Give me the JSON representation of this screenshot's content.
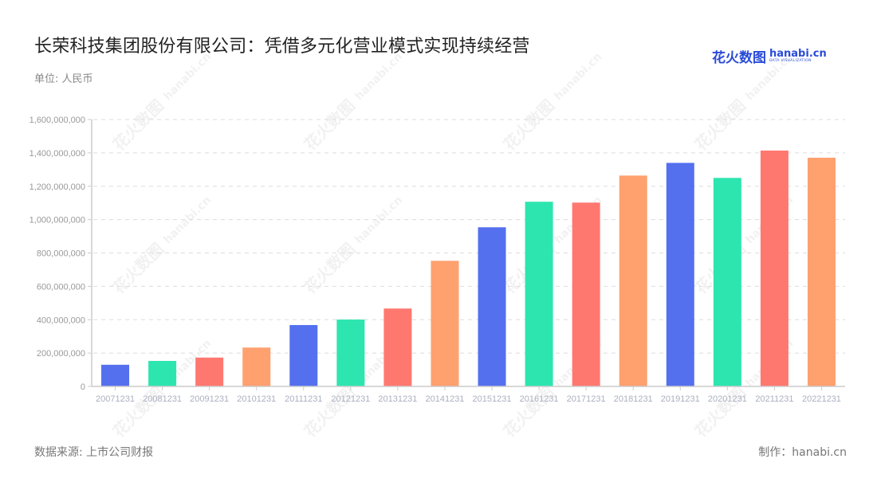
{
  "header": {
    "title": "长荣科技集团股份有限公司：凭借多元化营业模式实现持续经营",
    "unit": "单位: 人民币"
  },
  "logo": {
    "cn": "花火数图",
    "en": "hanabi.cn",
    "sub": "DATA VISUALIZATION"
  },
  "footer": {
    "source": "数据来源: 上市公司财报",
    "credit": "制作：hanabi.cn"
  },
  "colors": {
    "palette": [
      "#5470ee",
      "#2de5ae",
      "#ff7870",
      "#ffa06f"
    ],
    "axis": "#cccccc",
    "grid": "#dddddd"
  },
  "chart_data": {
    "type": "bar",
    "title": "长荣科技集团股份有限公司：凭借多元化营业模式实现持续经营",
    "subtitle": "单位: 人民币",
    "xlabel": "",
    "ylabel": "",
    "ylim": [
      0,
      1600000000
    ],
    "yticks": [
      0,
      200000000,
      400000000,
      600000000,
      800000000,
      1000000000,
      1200000000,
      1400000000,
      1600000000
    ],
    "ytick_labels": [
      "0",
      "200,000,000",
      "400,000,000",
      "600,000,000",
      "800,000,000",
      "1,000,000,000",
      "1,200,000,000",
      "1,400,000,000",
      "1,600,000,000"
    ],
    "grid": true,
    "legend": "none",
    "categories": [
      "20071231",
      "20081231",
      "20091231",
      "20101231",
      "20111231",
      "20121231",
      "20131231",
      "20141231",
      "20151231",
      "20161231",
      "20171231",
      "20181231",
      "20191231",
      "20201231",
      "20211231",
      "20221231"
    ],
    "values": [
      130000000,
      153000000,
      173000000,
      233000000,
      368000000,
      401000000,
      467000000,
      753000000,
      954000000,
      1107000000,
      1102000000,
      1264000000,
      1340000000,
      1250000000,
      1414000000,
      1371000000
    ],
    "bar_colors": [
      "#5470ee",
      "#2de5ae",
      "#ff7870",
      "#ffa06f",
      "#5470ee",
      "#2de5ae",
      "#ff7870",
      "#ffa06f",
      "#5470ee",
      "#2de5ae",
      "#ff7870",
      "#ffa06f",
      "#5470ee",
      "#2de5ae",
      "#ff7870",
      "#ffa06f"
    ]
  }
}
